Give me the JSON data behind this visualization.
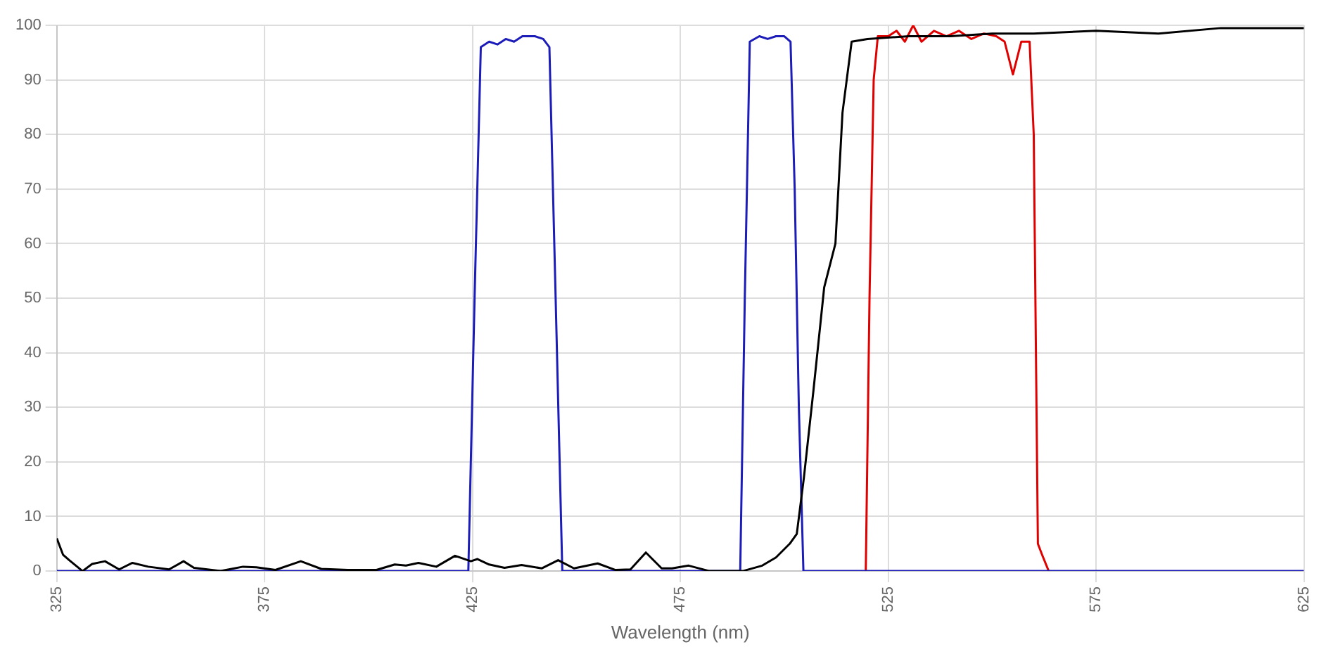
{
  "chart_data": {
    "type": "line",
    "xlabel": "Wavelength (nm)",
    "xlim": [
      325,
      625
    ],
    "xticks": [
      325,
      375,
      425,
      475,
      525,
      575,
      625
    ],
    "ylim": [
      0,
      100
    ],
    "yticks": [
      0,
      10,
      20,
      30,
      40,
      50,
      60,
      70,
      80,
      90,
      100
    ],
    "grid": true,
    "legend": false,
    "marker": "none",
    "line_style": "solid",
    "series": [
      {
        "color": "#000000",
        "x": [
          325,
          326.5,
          328,
          331.2,
          333.5,
          336.6,
          340,
          343.2,
          347,
          352,
          355.5,
          358,
          364.4,
          369.8,
          373,
          377.6,
          383.7,
          388.6,
          395,
          401.9,
          406.3,
          409,
          412,
          416.3,
          420.8,
          424.6,
          426.2,
          429,
          432.7,
          436.8,
          441.7,
          445.6,
          449.4,
          455.1,
          459.4,
          463,
          466.7,
          470.5,
          473,
          477,
          482,
          490,
          494.7,
          498,
          501.3,
          503,
          504.7,
          507,
          509.6,
          512.3,
          514,
          516.2,
          520,
          530,
          540,
          550,
          560,
          575,
          590,
          605,
          625
        ],
        "values": [
          6,
          3,
          2,
          0,
          1.3,
          1.8,
          0.3,
          1.5,
          0.8,
          0.3,
          1.8,
          0.6,
          0,
          0.8,
          0.7,
          0.2,
          1.8,
          0.4,
          0.2,
          0.2,
          1.2,
          1,
          1.5,
          0.8,
          2.8,
          1.8,
          2.2,
          1.2,
          0.6,
          1.1,
          0.5,
          2,
          0.5,
          1.4,
          0.2,
          0.3,
          3.4,
          0.5,
          0.5,
          1,
          0,
          0,
          1,
          2.5,
          5,
          6.8,
          17,
          33,
          52,
          60,
          84,
          97,
          97.5,
          98,
          98,
          98.5,
          98.5,
          99,
          98.5,
          99.5,
          99.5
        ]
      },
      {
        "color": "#1c1cb8",
        "x": [
          325,
          424,
          425.5,
          427,
          429,
          431,
          433,
          435,
          437,
          440,
          442,
          443.5,
          445,
          446.6,
          489.4,
          490.5,
          491.7,
          494,
          496,
          498,
          500,
          501.5,
          502.5,
          503.5,
          504.6,
          625
        ],
        "values": [
          0,
          0,
          50,
          96,
          97,
          96.5,
          97.5,
          97,
          98,
          98,
          97.5,
          96,
          50,
          0,
          0,
          50,
          97,
          98,
          97.5,
          98,
          98,
          97,
          70,
          30,
          0,
          0
        ]
      },
      {
        "color": "#e00000",
        "x": [
          519.6,
          520.5,
          521.5,
          522.5,
          525,
          527,
          529,
          531,
          533,
          536,
          539,
          542,
          545,
          548,
          551,
          553,
          555,
          557,
          559,
          560,
          561,
          562,
          563.6
        ],
        "values": [
          0,
          50,
          90,
          98,
          98,
          99,
          97,
          100,
          97,
          99,
          98,
          99,
          97.5,
          98.5,
          98,
          97,
          91,
          97,
          97,
          80,
          5,
          3,
          0
        ]
      }
    ]
  }
}
